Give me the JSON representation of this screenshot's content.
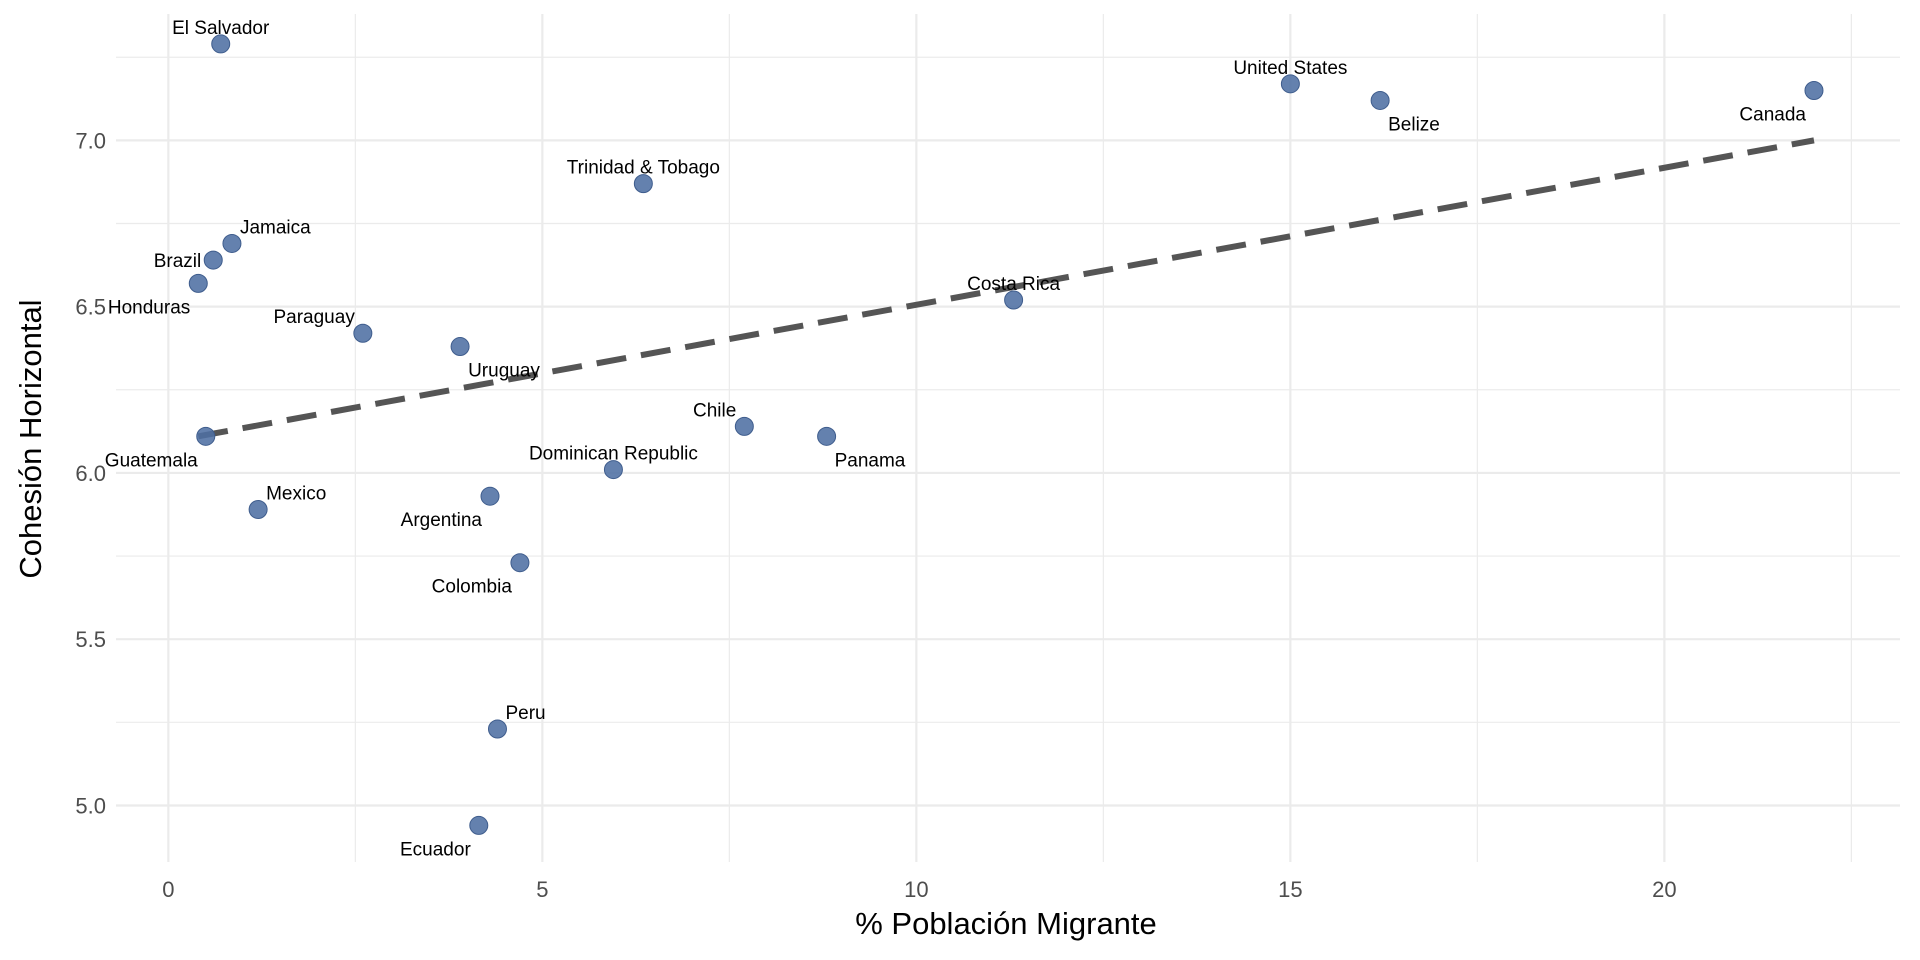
{
  "chart_data": {
    "type": "scatter",
    "title": "",
    "xlabel": "% Población Migrante",
    "ylabel": "Cohesión Horizontal",
    "xlim": [
      -0.7,
      23.15
    ],
    "ylim": [
      4.83,
      7.38
    ],
    "x_ticks": [
      0,
      5,
      10,
      15,
      20
    ],
    "y_ticks": [
      5.0,
      5.5,
      6.0,
      6.5,
      7.0
    ],
    "x_tick_labels": [
      "0",
      "5",
      "10",
      "15",
      "20"
    ],
    "y_tick_labels": [
      "5.0",
      "5.5",
      "6.0",
      "6.5",
      "7.0"
    ],
    "grid": true,
    "point_color": "#4e6fa3",
    "trend_color": "#555555",
    "trend_line": {
      "style": "dashed",
      "from": [
        0.4,
        6.11
      ],
      "to": [
        22.0,
        7.0
      ]
    },
    "points": [
      {
        "label": "El Salvador",
        "x": 0.7,
        "y": 7.29,
        "label_pos": "above"
      },
      {
        "label": "United States",
        "x": 15.0,
        "y": 7.17,
        "label_pos": "above"
      },
      {
        "label": "Belize",
        "x": 16.2,
        "y": 7.12,
        "label_pos": "below-right"
      },
      {
        "label": "Canada",
        "x": 22.0,
        "y": 7.15,
        "label_pos": "below-left"
      },
      {
        "label": "Trinidad & Tobago",
        "x": 6.35,
        "y": 6.87,
        "label_pos": "above"
      },
      {
        "label": "Jamaica",
        "x": 0.85,
        "y": 6.69,
        "label_pos": "above-right"
      },
      {
        "label": "Brazil",
        "x": 0.6,
        "y": 6.64,
        "label_pos": "left"
      },
      {
        "label": "Honduras",
        "x": 0.4,
        "y": 6.57,
        "label_pos": "below-left"
      },
      {
        "label": "Costa Rica",
        "x": 11.3,
        "y": 6.52,
        "label_pos": "above"
      },
      {
        "label": "Paraguay",
        "x": 2.6,
        "y": 6.42,
        "label_pos": "above-left"
      },
      {
        "label": "Uruguay",
        "x": 3.9,
        "y": 6.38,
        "label_pos": "below-right"
      },
      {
        "label": "Chile",
        "x": 7.7,
        "y": 6.14,
        "label_pos": "above-left"
      },
      {
        "label": "Panama",
        "x": 8.8,
        "y": 6.11,
        "label_pos": "below-right"
      },
      {
        "label": "Guatemala",
        "x": 0.5,
        "y": 6.11,
        "label_pos": "below-left"
      },
      {
        "label": "Dominican Republic",
        "x": 5.95,
        "y": 6.01,
        "label_pos": "above"
      },
      {
        "label": "Mexico",
        "x": 1.2,
        "y": 5.89,
        "label_pos": "above-right"
      },
      {
        "label": "Argentina",
        "x": 4.3,
        "y": 5.93,
        "label_pos": "below-left"
      },
      {
        "label": "Colombia",
        "x": 4.7,
        "y": 5.73,
        "label_pos": "below-left"
      },
      {
        "label": "Peru",
        "x": 4.4,
        "y": 5.23,
        "label_pos": "above-right"
      },
      {
        "label": "Ecuador",
        "x": 4.15,
        "y": 4.94,
        "label_pos": "below-left"
      }
    ]
  }
}
